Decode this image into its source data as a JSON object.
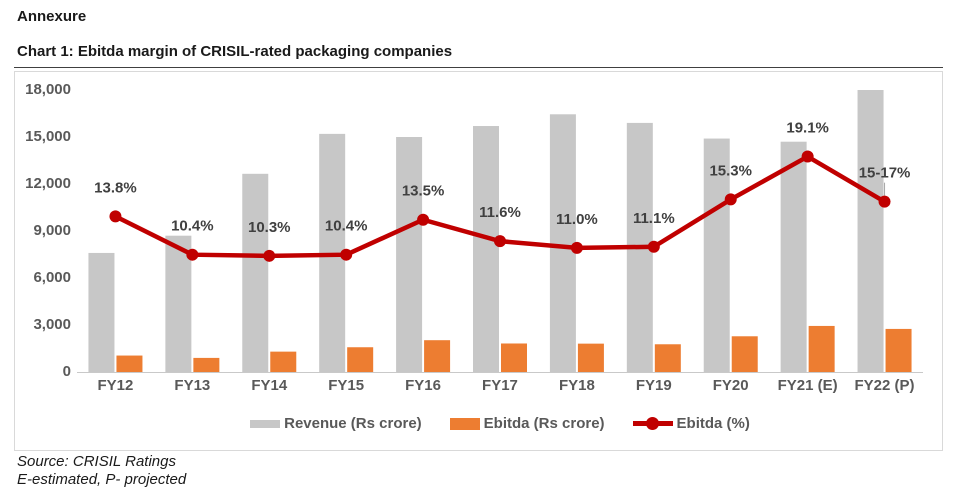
{
  "page": {
    "annexure_label": "Annexure",
    "chart_title": "Chart 1: Ebitda margin of CRISIL-rated packaging companies",
    "source_line": "Source: CRISIL Ratings",
    "notes_line": "E-estimated, P- projected"
  },
  "legend": {
    "items": [
      {
        "label": "Revenue (Rs crore)",
        "swatch": "gray-bar"
      },
      {
        "label": "Ebitda (Rs crore)",
        "swatch": "orange-bar"
      },
      {
        "label": "Ebitda (%)",
        "swatch": "red-line-marker"
      }
    ]
  },
  "colors": {
    "revenue_bar": "#c7c7c7",
    "ebitda_bar": "#ed7d31",
    "ebitda_line": "#c00000",
    "axis_text": "#595959",
    "data_label_text": "#404040",
    "frame_border": "#d9d9d9",
    "axis_line": "#c9c9c9",
    "leader_line": "#a6a6a6"
  },
  "chart_data": {
    "type": "combo-bar-line",
    "title": "Chart 1: Ebitda margin of CRISIL-rated packaging companies",
    "categories": [
      "FY12",
      "FY13",
      "FY14",
      "FY15",
      "FY16",
      "FY17",
      "FY18",
      "FY19",
      "FY20",
      "FY21 (E)",
      "FY22 (P)"
    ],
    "series": [
      {
        "name": "Revenue (Rs crore)",
        "type": "bar",
        "axis": "primary",
        "values": [
          7600,
          8700,
          12650,
          15200,
          15000,
          15700,
          16450,
          15900,
          14900,
          14700,
          18000
        ]
      },
      {
        "name": "Ebitda (Rs crore)",
        "type": "bar",
        "axis": "primary",
        "values": [
          1050,
          900,
          1300,
          1580,
          2030,
          1820,
          1810,
          1770,
          2280,
          2940,
          2750
        ]
      },
      {
        "name": "Ebitda (%)",
        "type": "line",
        "axis": "secondary",
        "values": [
          13.8,
          10.4,
          10.3,
          10.4,
          13.5,
          11.6,
          11.0,
          11.1,
          15.3,
          19.1,
          15.1
        ],
        "point_labels": [
          "13.8%",
          "10.4%",
          "10.3%",
          "10.4%",
          "13.5%",
          "11.6%",
          "11.0%",
          "11.1%",
          "15.3%",
          "19.1%",
          "15-17%"
        ],
        "last_label_leader": true
      }
    ],
    "primary_axis": {
      "min": 0,
      "max": 18000,
      "tick_interval": 3000,
      "tick_labels": [
        "0",
        "3,000",
        "6,000",
        "9,000",
        "12,000",
        "15,000",
        "18,000"
      ]
    },
    "secondary_axis": {
      "min": 0,
      "max": 25,
      "visible": false
    },
    "grid": false,
    "legend_position": "bottom"
  }
}
